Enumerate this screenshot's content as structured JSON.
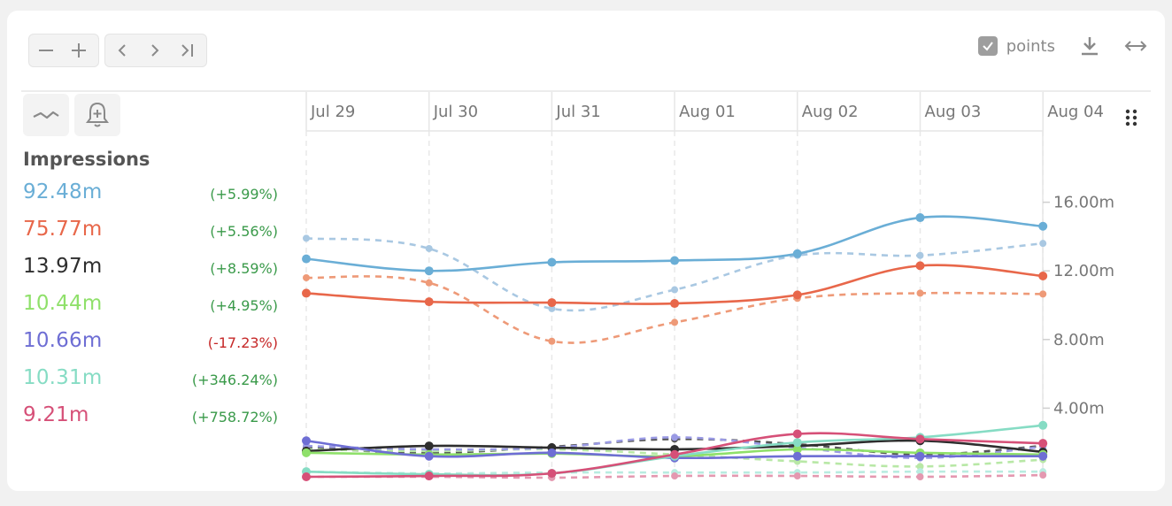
{
  "toolbar": {
    "zoom_out_icon": "minus-icon",
    "zoom_in_icon": "plus-icon",
    "prev_icon": "chevron-left-icon",
    "next_icon": "chevron-right-icon",
    "last_icon": "skip-to-end-icon",
    "points_label": "points",
    "points_checked": true,
    "download_icon": "download-icon",
    "expand_icon": "horizontal-expand-icon",
    "trend_icon": "trend-line-icon",
    "alert_icon": "bell-plus-icon",
    "menu_icon": "drag-handle-icon"
  },
  "legend": {
    "title": "Impressions",
    "items": [
      {
        "value": "92.48m",
        "change": "(+5.99%)",
        "color": "#6aaed6",
        "change_color": "#3a9a4a"
      },
      {
        "value": "75.77m",
        "change": "(+5.56%)",
        "color": "#e8674a",
        "change_color": "#3a9a4a"
      },
      {
        "value": "13.97m",
        "change": "(+8.59%)",
        "color": "#2e2e2e",
        "change_color": "#3a9a4a"
      },
      {
        "value": "10.44m",
        "change": "(+4.95%)",
        "color": "#8fe06a",
        "change_color": "#3a9a4a"
      },
      {
        "value": "10.66m",
        "change": "(-17.23%)",
        "color": "#6e6ed4",
        "change_color": "#c62828"
      },
      {
        "value": "10.31m",
        "change": "(+346.24%)",
        "color": "#86dcc4",
        "change_color": "#3a9a4a"
      },
      {
        "value": "9.21m",
        "change": "(+758.72%)",
        "color": "#d65078",
        "change_color": "#3a9a4a"
      }
    ]
  },
  "chart_data": {
    "type": "line",
    "categories": [
      "Jul 29",
      "Jul 30",
      "Jul 31",
      "Aug 01",
      "Aug 02",
      "Aug 03",
      "Aug 04"
    ],
    "yticks": [
      "4.00m",
      "8.00m",
      "12.00m",
      "16.00m"
    ],
    "ytick_values": [
      4,
      8,
      12,
      16
    ],
    "ylim": [
      0,
      18
    ],
    "grid": "vertical dashed",
    "series": [
      {
        "color": "#6aaed6",
        "dashed": false,
        "values": [
          12.7,
          12.0,
          12.5,
          12.6,
          13.0,
          15.1,
          14.6
        ]
      },
      {
        "color": "#a9c8e2",
        "dashed": true,
        "values": [
          13.9,
          13.3,
          9.8,
          10.9,
          12.9,
          12.9,
          13.6
        ]
      },
      {
        "color": "#e8674a",
        "dashed": false,
        "values": [
          10.7,
          10.2,
          10.15,
          10.1,
          10.6,
          12.3,
          11.7
        ]
      },
      {
        "color": "#ee9a78",
        "dashed": true,
        "values": [
          11.6,
          11.3,
          7.9,
          9.0,
          10.4,
          10.7,
          10.65
        ]
      },
      {
        "color": "#2e2e2e",
        "dashed": false,
        "values": [
          1.5,
          1.8,
          1.7,
          1.6,
          1.8,
          2.1,
          1.45
        ]
      },
      {
        "color": "#555555",
        "dashed": true,
        "values": [
          1.7,
          1.4,
          1.75,
          2.2,
          1.9,
          1.3,
          1.8
        ]
      },
      {
        "color": "#8fe06a",
        "dashed": false,
        "values": [
          1.4,
          1.3,
          1.35,
          1.2,
          1.6,
          1.4,
          1.3
        ]
      },
      {
        "color": "#b8e8a6",
        "dashed": true,
        "values": [
          1.6,
          1.5,
          1.6,
          1.3,
          0.9,
          0.6,
          1.0
        ]
      },
      {
        "color": "#6e6ed4",
        "dashed": false,
        "values": [
          2.1,
          1.2,
          1.4,
          1.1,
          1.2,
          1.2,
          1.2
        ]
      },
      {
        "color": "#9a9ae4",
        "dashed": true,
        "values": [
          1.8,
          1.6,
          1.7,
          2.3,
          1.7,
          1.1,
          1.75
        ]
      },
      {
        "color": "#86dcc4",
        "dashed": false,
        "values": [
          0.3,
          0.15,
          0.2,
          1.2,
          2.0,
          2.3,
          3.0
        ]
      },
      {
        "color": "#b8ece0",
        "dashed": true,
        "values": [
          0.3,
          0.2,
          0.25,
          0.25,
          0.25,
          0.3,
          0.3
        ]
      },
      {
        "color": "#d65078",
        "dashed": false,
        "values": [
          0.0,
          0.05,
          0.2,
          1.3,
          2.5,
          2.2,
          1.95
        ]
      },
      {
        "color": "#e498b0",
        "dashed": true,
        "values": [
          0.0,
          0.0,
          -0.05,
          0.05,
          0.05,
          0.0,
          0.1
        ]
      }
    ]
  }
}
